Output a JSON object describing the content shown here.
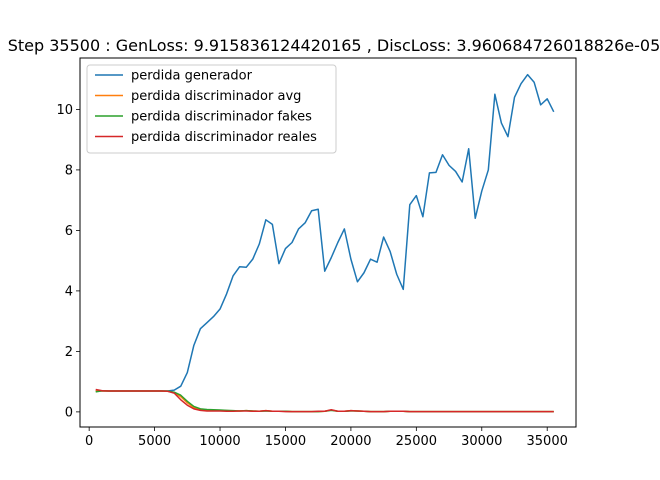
{
  "chart_data": {
    "type": "line",
    "title": "Step 35500 : GenLoss: 9.915836124420165 , DiscLoss: 3.960684726018826e-05",
    "xlabel": "",
    "ylabel": "",
    "xlim": [
      -700,
      37200
    ],
    "ylim": [
      -0.5,
      11.7
    ],
    "x_ticks": [
      0,
      5000,
      10000,
      15000,
      20000,
      25000,
      30000,
      35000
    ],
    "y_ticks": [
      0,
      2,
      4,
      6,
      8,
      10
    ],
    "grid": false,
    "legend": "upper-left",
    "x": [
      500,
      1000,
      1500,
      2000,
      2500,
      3000,
      3500,
      4000,
      4500,
      5000,
      5500,
      6000,
      6500,
      7000,
      7500,
      8000,
      8500,
      9000,
      9500,
      10000,
      10500,
      11000,
      11500,
      12000,
      12500,
      13000,
      13500,
      14000,
      14500,
      15000,
      15500,
      16000,
      16500,
      17000,
      17500,
      18000,
      18500,
      19000,
      19500,
      20000,
      20500,
      21000,
      21500,
      22000,
      22500,
      23000,
      23500,
      24000,
      24500,
      25000,
      25500,
      26000,
      26500,
      27000,
      27500,
      28000,
      28500,
      29000,
      29500,
      30000,
      30500,
      31000,
      31500,
      32000,
      32500,
      33000,
      33500,
      34000,
      34500,
      35000,
      35500
    ],
    "series": [
      {
        "name": "perdida generador",
        "color": "#1f77b4",
        "values": [
          0.7,
          0.69,
          0.69,
          0.69,
          0.69,
          0.69,
          0.69,
          0.69,
          0.69,
          0.69,
          0.69,
          0.69,
          0.72,
          0.85,
          1.3,
          2.2,
          2.75,
          2.95,
          3.15,
          3.4,
          3.9,
          4.5,
          4.8,
          4.78,
          5.05,
          5.55,
          6.35,
          6.2,
          4.9,
          5.4,
          5.6,
          6.05,
          6.25,
          6.65,
          6.7,
          4.65,
          5.1,
          5.6,
          6.05,
          5.05,
          4.3,
          4.6,
          5.05,
          4.95,
          5.78,
          5.3,
          4.55,
          4.05,
          6.85,
          7.15,
          6.45,
          7.9,
          7.92,
          8.5,
          8.15,
          7.95,
          7.6,
          8.7,
          6.4,
          7.3,
          8.0,
          10.5,
          9.55,
          9.1,
          10.4,
          10.85,
          11.15,
          10.9,
          10.15,
          10.35,
          9.92
        ]
      },
      {
        "name": "perdida discriminador avg",
        "color": "#ff7f0e",
        "values": [
          0.7,
          0.69,
          0.69,
          0.69,
          0.69,
          0.69,
          0.69,
          0.69,
          0.69,
          0.69,
          0.69,
          0.68,
          0.64,
          0.5,
          0.3,
          0.14,
          0.08,
          0.06,
          0.05,
          0.05,
          0.04,
          0.03,
          0.03,
          0.04,
          0.03,
          0.02,
          0.04,
          0.02,
          0.02,
          0.02,
          0.01,
          0.01,
          0.01,
          0.01,
          0.01,
          0.02,
          0.06,
          0.02,
          0.02,
          0.04,
          0.03,
          0.02,
          0.01,
          0.01,
          0.01,
          0.02,
          0.02,
          0.02,
          0.01,
          0.01,
          0.01,
          0.01,
          0.01,
          0.01,
          0.01,
          0.01,
          0.01,
          0.01,
          0.01,
          0.01,
          0.01,
          0.01,
          0.01,
          0.01,
          0.01,
          0.01,
          0.01,
          0.01,
          0.01,
          0.01,
          0.01
        ]
      },
      {
        "name": "perdida discriminador fakes",
        "color": "#2ca02c",
        "values": [
          0.66,
          0.7,
          0.69,
          0.69,
          0.69,
          0.69,
          0.69,
          0.69,
          0.69,
          0.69,
          0.69,
          0.69,
          0.65,
          0.55,
          0.35,
          0.18,
          0.1,
          0.08,
          0.07,
          0.06,
          0.05,
          0.04,
          0.03,
          0.04,
          0.03,
          0.02,
          0.03,
          0.02,
          0.02,
          0.02,
          0.01,
          0.01,
          0.01,
          0.01,
          0.01,
          0.02,
          0.05,
          0.02,
          0.02,
          0.03,
          0.03,
          0.02,
          0.01,
          0.01,
          0.01,
          0.02,
          0.02,
          0.02,
          0.01,
          0.01,
          0.01,
          0.01,
          0.01,
          0.01,
          0.01,
          0.01,
          0.01,
          0.01,
          0.01,
          0.01,
          0.01,
          0.01,
          0.01,
          0.01,
          0.01,
          0.01,
          0.01,
          0.01,
          0.01,
          0.01,
          0.01
        ]
      },
      {
        "name": "perdida discriminador reales",
        "color": "#d62728",
        "values": [
          0.74,
          0.7,
          0.69,
          0.69,
          0.69,
          0.69,
          0.69,
          0.69,
          0.69,
          0.69,
          0.69,
          0.68,
          0.62,
          0.4,
          0.22,
          0.1,
          0.05,
          0.03,
          0.03,
          0.03,
          0.02,
          0.02,
          0.03,
          0.03,
          0.02,
          0.02,
          0.04,
          0.02,
          0.02,
          0.01,
          0.01,
          0.01,
          0.01,
          0.01,
          0.02,
          0.02,
          0.07,
          0.02,
          0.02,
          0.04,
          0.03,
          0.02,
          0.01,
          0.01,
          0.01,
          0.02,
          0.02,
          0.02,
          0.01,
          0.01,
          0.01,
          0.01,
          0.01,
          0.01,
          0.01,
          0.01,
          0.01,
          0.01,
          0.01,
          0.01,
          0.01,
          0.01,
          0.01,
          0.01,
          0.01,
          0.01,
          0.01,
          0.01,
          0.01,
          0.01,
          0.01
        ]
      }
    ]
  }
}
